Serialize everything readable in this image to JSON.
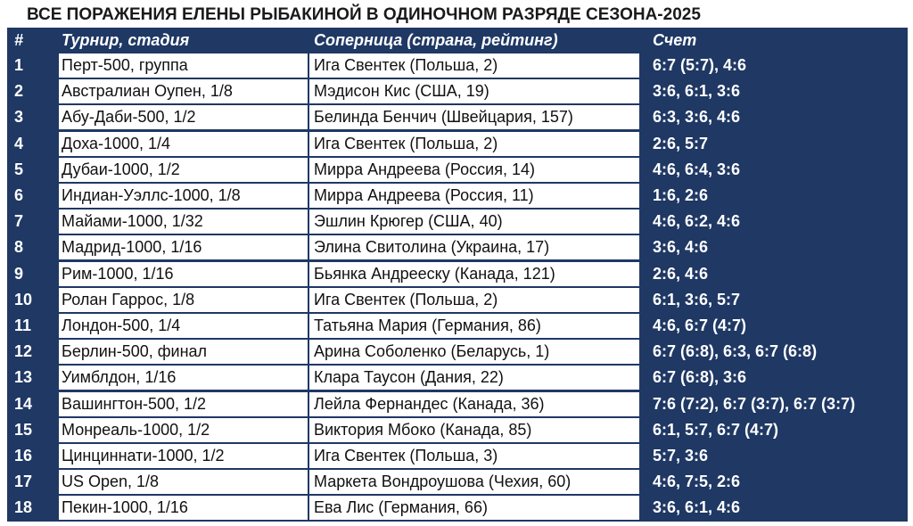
{
  "title": "ВСЕ ПОРАЖЕНИЯ ЕЛЕНЫ РЫБАКИНОЙ В ОДИНОЧНОМ РАЗРЯДЕ СЕЗОНА-2025",
  "headers": {
    "num": "#",
    "tournament": "Турнир, стадия",
    "opponent": "Соперница (страна, рейтинг)",
    "score": "Счет"
  },
  "colors": {
    "header_bg": "#1f3864",
    "row_bg": "#ffffff",
    "text": "#111111",
    "header_text": "#ffffff"
  },
  "rows": [
    {
      "num": "1",
      "tournament": "Перт-500, группа",
      "opponent": "Ига Свентек (Польша, 2)",
      "score": "6:7 (5:7), 4:6"
    },
    {
      "num": "2",
      "tournament": "Австралиан Оупен, 1/8",
      "opponent": "Мэдисон Кис (США, 19)",
      "score": "3:6, 6:1, 3:6"
    },
    {
      "num": "3",
      "tournament": "Абу-Даби-500, 1/2",
      "opponent": "Белинда Бенчич (Швейцария, 157)",
      "score": "6:3, 3:6, 4:6"
    },
    {
      "num": "4",
      "tournament": "Доха-1000, 1/4",
      "opponent": "Ига Свентек (Польша, 2)",
      "score": "2:6, 5:7"
    },
    {
      "num": "5",
      "tournament": "Дубаи-1000, 1/2",
      "opponent": "Мирра Андреева (Россия, 14)",
      "score": "4:6, 6:4, 3:6"
    },
    {
      "num": "6",
      "tournament": "Индиан-Уэллс-1000, 1/8",
      "opponent": "Мирра Андреева (Россия, 11)",
      "score": "1:6, 2:6"
    },
    {
      "num": "7",
      "tournament": "Майами-1000, 1/32",
      "opponent": "Эшлин Крюгер (США, 40)",
      "score": "4:6, 6:2, 4:6"
    },
    {
      "num": "8",
      "tournament": "Мадрид-1000, 1/16",
      "opponent": "Элина Свитолина (Украина, 17)",
      "score": "3:6, 4:6"
    },
    {
      "num": "9",
      "tournament": "Рим-1000, 1/16",
      "opponent": "Бьянка Андрееску (Канада, 121)",
      "score": "2:6, 4:6"
    },
    {
      "num": "10",
      "tournament": "Ролан Гаррос, 1/8",
      "opponent": "Ига Свентек (Польша, 2)",
      "score": "6:1, 3:6, 5:7"
    },
    {
      "num": "11",
      "tournament": "Лондон-500, 1/4",
      "opponent": "Татьяна Мария (Германия, 86)",
      "score": "4:6, 6:7 (4:7)"
    },
    {
      "num": "12",
      "tournament": "Берлин-500, финал",
      "opponent": "Арина Соболенко (Беларусь, 1)",
      "score": "6:7 (6:8), 6:3, 6:7 (6:8)"
    },
    {
      "num": "13",
      "tournament": "Уимблдон, 1/16",
      "opponent": "Клара Таусон (Дания, 22)",
      "score": "6:7 (6:8), 3:6"
    },
    {
      "num": "14",
      "tournament": "Вашингтон-500, 1/2",
      "opponent": "Лейла Фернандес (Канада, 36)",
      "score": "7:6 (7:2), 6:7 (3:7), 6:7 (3:7)"
    },
    {
      "num": "15",
      "tournament": "Монреаль-1000, 1/2",
      "opponent": "Виктория Мбоко (Канада, 85)",
      "score": "6:1, 5:7, 6:7 (4:7)"
    },
    {
      "num": "16",
      "tournament": "Цинциннати-1000, 1/2",
      "opponent": "Ига Свентек (Польша, 3)",
      "score": "5:7, 3:6"
    },
    {
      "num": "17",
      "tournament": "US Open, 1/8",
      "opponent": "Маркета Вондроушова (Чехия, 60)",
      "score": "4:6, 7:5, 2:6"
    },
    {
      "num": "18",
      "tournament": "Пекин-1000, 1/16",
      "opponent": "Ева Лис (Германия, 66)",
      "score": "3:6, 6:1, 4:6"
    }
  ]
}
